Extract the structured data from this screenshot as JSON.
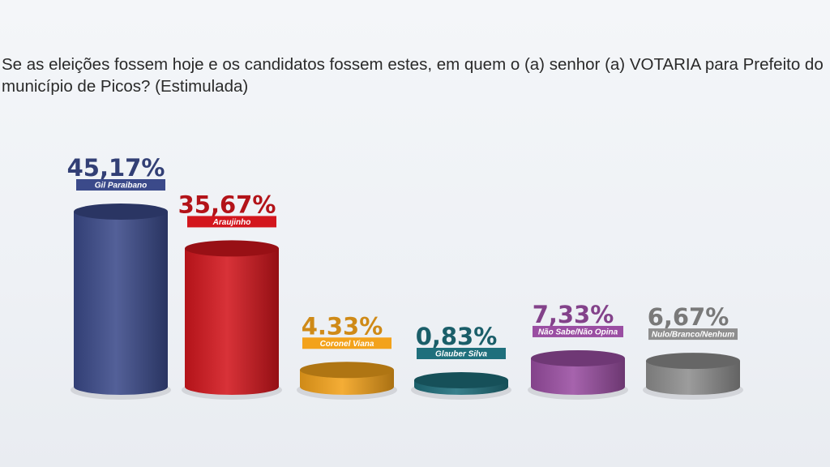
{
  "question": "Se as eleições fossem hoje e os candidatos fossem estes, em quem o (a) senhor (a) VOTARIA para Prefeito do município de Picos? (Estimulada)",
  "chart_data": {
    "type": "bar",
    "title": "Se as eleições fossem hoje e os candidatos fossem estes, em quem o (a) senhor (a) VOTARIA para Prefeito do município de Picos? (Estimulada)",
    "categories": [
      "Gil Paraibano",
      "Araujinho",
      "Coronel Viana",
      "Glauber Silva",
      "Não Sabe/Não Opina",
      "Nulo/Branco/Nenhum"
    ],
    "values": [
      45.17,
      35.67,
      4.33,
      0.83,
      7.33,
      6.67
    ],
    "value_labels": [
      "45,17%",
      "35,67%",
      "4.33%",
      "0,83%",
      "7,33%",
      "6,67%"
    ],
    "colors": [
      "#3b4a8a",
      "#d3161d",
      "#f3a21b",
      "#1f6f7c",
      "#9a4ea2",
      "#8e8e8e"
    ],
    "ylim": [
      0,
      50
    ],
    "grid": false,
    "legend": "none"
  }
}
